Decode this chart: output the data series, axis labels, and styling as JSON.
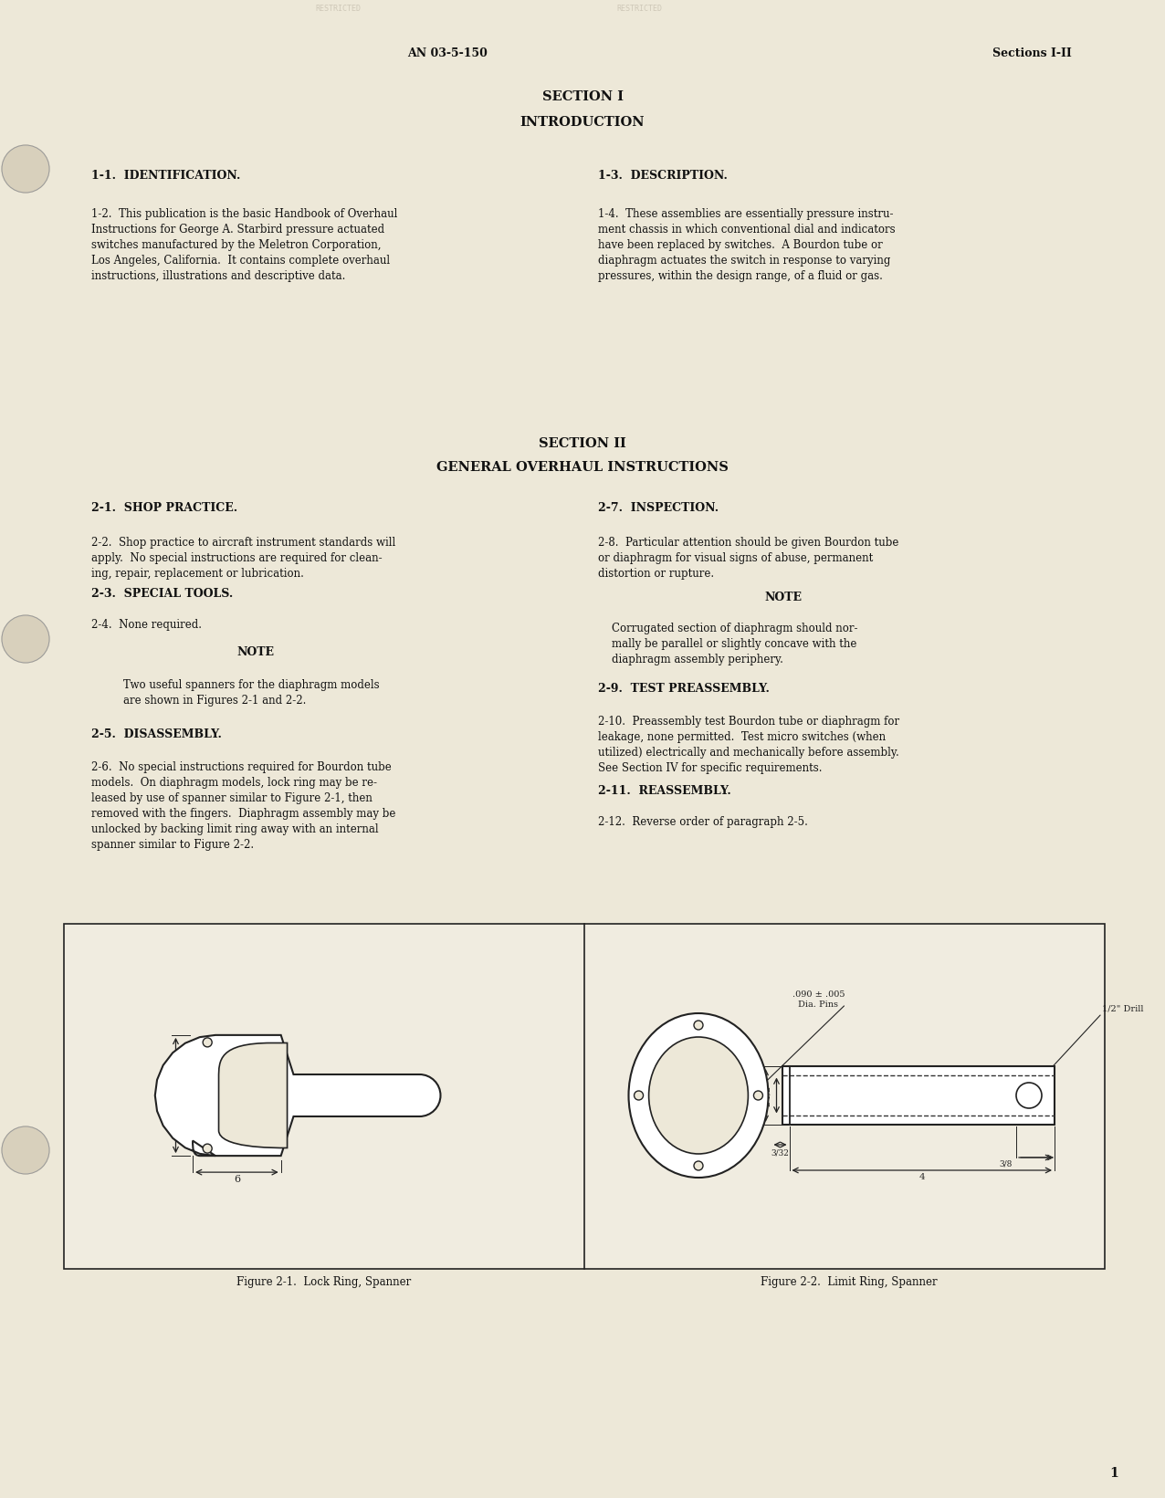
{
  "bg_color": "#ede8d8",
  "text_color": "#111111",
  "header_left": "AN 03-5-150",
  "header_right": "Sections I-II",
  "section1_title": "SECTION I",
  "section1_subtitle": "INTRODUCTION",
  "s1_head1": "1-1.  IDENTIFICATION.",
  "s1_head2": "1-3.  DESCRIPTION.",
  "s1_p1": "1-2.  This publication is the basic Handbook of Overhaul\nInstructions for George A. Starbird pressure actuated\nswitches manufactured by the Meletron Corporation,\nLos Angeles, California.  It contains complete overhaul\ninstructions, illustrations and descriptive data.",
  "s1_p2": "1-4.  These assemblies are essentially pressure instru-\nment chassis in which conventional dial and indicators\nhave been replaced by switches.  A Bourdon tube or\ndiaphragm actuates the switch in response to varying\npressures, within the design range, of a fluid or gas.",
  "section2_title": "SECTION II",
  "section2_subtitle": "GENERAL OVERHAUL INSTRUCTIONS",
  "s2_head1": "2-1.  SHOP PRACTICE.",
  "s2_head2": "2-7.  INSPECTION.",
  "s2_p1": "2-2.  Shop practice to aircraft instrument standards will\napply.  No special instructions are required for clean-\ning, repair, replacement or lubrication.",
  "s2_p2": "2-8.  Particular attention should be given Bourdon tube\nor diaphragm for visual signs of abuse, permanent\ndistortion or rupture.",
  "s2_head3": "2-3.  SPECIAL TOOLS.",
  "s2_note2_title": "NOTE",
  "s2_note2_text": "Corrugated section of diaphragm should nor-\nmally be parallel or slightly concave with the\ndiaphragm assembly periphery.",
  "s2_p3": "2-4.  None required.",
  "s2_note1_title": "NOTE",
  "s2_note1_text": "Two useful spanners for the diaphragm models\nare shown in Figures 2-1 and 2-2.",
  "s2_head4": "2-9.  TEST PREASSEMBLY.",
  "s2_head5": "2-5.  DISASSEMBLY.",
  "s2_p4": "2-10.  Preassembly test Bourdon tube or diaphragm for\nleakage, none permitted.  Test micro switches (when\nutilized) electrically and mechanically before assembly.\nSee Section IV for specific requirements.",
  "s2_p5": "2-6.  No special instructions required for Bourdon tube\nmodels.  On diaphragm models, lock ring may be re-\nleased by use of spanner similar to Figure 2-1, then\nremoved with the fingers.  Diaphragm assembly may be\nunlocked by backing limit ring away with an internal\nspanner similar to Figure 2-2.",
  "s2_head6": "2-11.  REASSEMBLY.",
  "s2_p6": "2-12.  Reverse order of paragraph 2-5.",
  "fig1_caption": "Figure 2-1.  Lock Ring, Spanner",
  "fig2_caption": "Figure 2-2.  Limit Ring, Spanner",
  "page_num": "1"
}
